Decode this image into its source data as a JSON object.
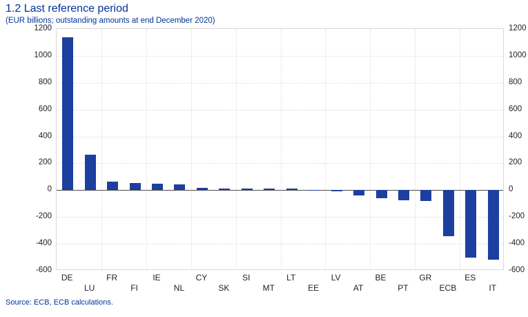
{
  "header": {
    "title": "1.2 Last reference period",
    "subtitle": "(EUR billions; outstanding amounts at end December 2020)"
  },
  "footer": {
    "source": "Source: ECB, ECB calculations."
  },
  "chart_data": {
    "type": "bar",
    "title": "1.2 Last reference period",
    "subtitle": "(EUR billions; outstanding amounts at end December 2020)",
    "categories": [
      "DE",
      "LU",
      "FR",
      "FI",
      "IE",
      "NL",
      "CY",
      "SK",
      "SI",
      "MT",
      "LT",
      "EE",
      "LV",
      "AT",
      "BE",
      "PT",
      "GR",
      "ECB",
      "ES",
      "IT"
    ],
    "values": [
      1136,
      266,
      65,
      55,
      50,
      42,
      15,
      13,
      11,
      11,
      10,
      1,
      -10,
      -37,
      -62,
      -76,
      -79,
      -342,
      -503,
      -517
    ],
    "xlabel": "",
    "ylabel": "",
    "ylim": [
      -600,
      1200
    ],
    "yticks": [
      1200,
      1000,
      800,
      600,
      400,
      200,
      0,
      -200,
      -400,
      -600
    ],
    "grid": true,
    "legend": "none",
    "bar_color": "#1c3fa0",
    "gridline_color": "#dcdcdc",
    "zero_line_color": "#4d4d4d",
    "text_blue": "#003299",
    "source": "Source: ECB, ECB calculations."
  }
}
